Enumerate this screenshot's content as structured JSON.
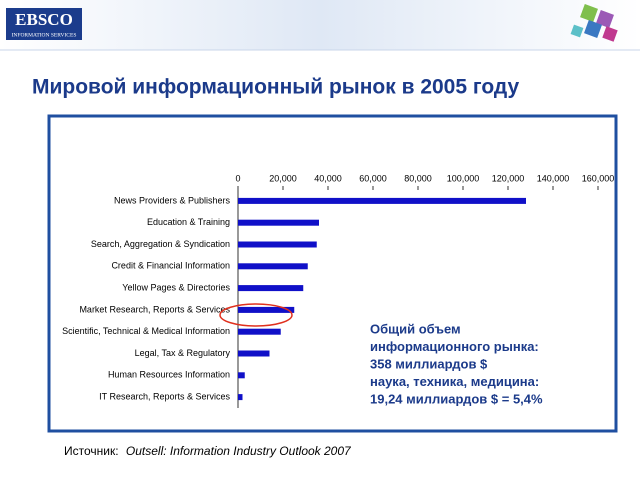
{
  "chart_data": {
    "type": "bar",
    "orientation": "horizontal",
    "logo": {
      "name": "EBSCO",
      "tagline": "INFORMATION SERVICES"
    },
    "title": "Мировой информационный рынок в 2005 году",
    "categories": [
      "News Providers & Publishers",
      "Education & Training",
      "Search, Aggregation & Syndication",
      "Credit & Financial Information",
      "Yellow Pages & Directories",
      "Market Research, Reports & Services",
      "Scientific, Technical & Medical Information",
      "Legal, Tax & Regulatory",
      "Human Resources Information",
      "IT Research, Reports & Services"
    ],
    "values": [
      128000,
      36000,
      35000,
      31000,
      29000,
      25000,
      19000,
      14000,
      3000,
      2000
    ],
    "color": "#1010c8",
    "xlim": [
      0,
      160000
    ],
    "xticks": [
      0,
      {
        "value": 20000,
        "label": "20,000"
      },
      {
        "value": 40000,
        "label": "40,000"
      },
      {
        "value": 60000,
        "label": "60,000"
      },
      {
        "value": 80000,
        "label": "80,000"
      },
      {
        "value": 100000,
        "label": "100,000"
      },
      {
        "value": 120000,
        "label": "120,000"
      },
      {
        "value": 140000,
        "label": "140,000"
      },
      {
        "value": 160000,
        "label": "160,000"
      }
    ],
    "annotation": [
      "Общий объем",
      "информационного рынка:",
      "358 миллиардов $",
      "наука, техника, медицина:",
      "19,24 миллиардов $ = 5,4%"
    ],
    "source": {
      "prefix": "Источник:",
      "text": "Outsell: Information Industry Outlook 2007"
    }
  }
}
